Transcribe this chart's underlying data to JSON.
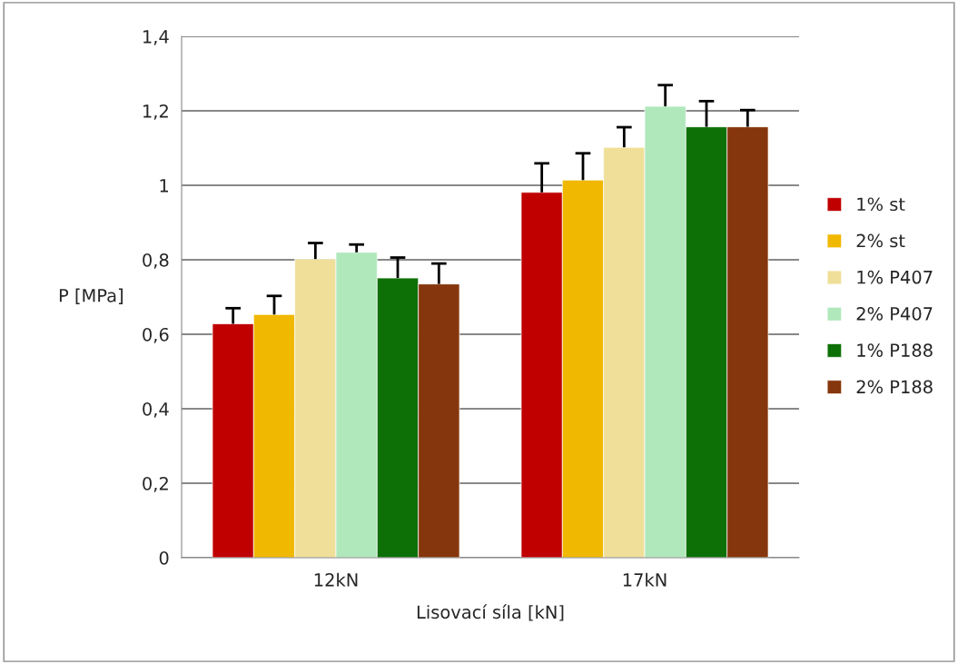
{
  "chart_data": {
    "type": "bar",
    "xlabel": "Lisovací síla [kN]",
    "ylabel": "P [MPa]",
    "categories": [
      "12kN",
      "17kN"
    ],
    "series": [
      {
        "name": "1% st",
        "color": "#c00000",
        "values": [
          0.628,
          0.981
        ],
        "errors": [
          [
            0.628,
            0.67
          ],
          [
            0.981,
            1.059
          ]
        ]
      },
      {
        "name": "2% st",
        "color": "#f0b800",
        "values": [
          0.653,
          1.014
        ],
        "errors": [
          [
            0.653,
            0.703
          ],
          [
            1.014,
            1.086
          ]
        ]
      },
      {
        "name": "1% P407",
        "color": "#f0df99",
        "values": [
          0.802,
          1.102
        ],
        "errors": [
          [
            0.802,
            0.845
          ],
          [
            1.102,
            1.156
          ]
        ]
      },
      {
        "name": "2% P407",
        "color": "#b0e8bc",
        "values": [
          0.82,
          1.212
        ],
        "errors": [
          [
            0.82,
            0.841
          ],
          [
            1.212,
            1.269
          ]
        ]
      },
      {
        "name": "1% P188",
        "color": "#0c7006",
        "values": [
          0.751,
          1.157
        ],
        "errors": [
          [
            0.751,
            0.806
          ],
          [
            1.157,
            1.226
          ]
        ]
      },
      {
        "name": "2% P188",
        "color": "#86360c",
        "values": [
          0.735,
          1.157
        ],
        "errors": [
          [
            0.735,
            0.79
          ],
          [
            1.157,
            1.202
          ]
        ]
      }
    ],
    "ylim": [
      0,
      1.4
    ],
    "yticks": [
      {
        "value": 0,
        "label": "0"
      },
      {
        "value": 0.2,
        "label": "0,2"
      },
      {
        "value": 0.4,
        "label": "0,4"
      },
      {
        "value": 0.6,
        "label": "0,6"
      },
      {
        "value": 0.8,
        "label": "0,8"
      },
      {
        "value": 1,
        "label": "1"
      },
      {
        "value": 1.2,
        "label": "1,2"
      },
      {
        "value": 1.4,
        "label": "1,4"
      }
    ],
    "grid": "y",
    "legend": "right"
  }
}
